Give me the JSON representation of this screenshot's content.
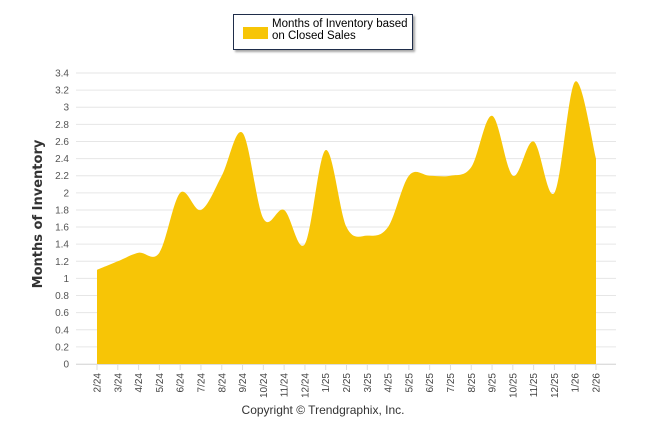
{
  "chart_data": {
    "type": "area",
    "title": "",
    "xlabel": "",
    "ylabel": "Months of Inventory",
    "ylim": [
      0,
      3.4
    ],
    "yticks": [
      "0",
      "0.2",
      "0.4",
      "0.6",
      "0.8",
      "1",
      "1.2",
      "1.4",
      "1.6",
      "1.8",
      "2",
      "2.2",
      "2.4",
      "2.6",
      "2.8",
      "3",
      "3.2",
      "3.4"
    ],
    "ytick_values": [
      0,
      0.2,
      0.4,
      0.6,
      0.8,
      1,
      1.2,
      1.4,
      1.6,
      1.8,
      2,
      2.2,
      2.4,
      2.6,
      2.8,
      3,
      3.2,
      3.4
    ],
    "grid": true,
    "legend_position": "top-center",
    "categories": [
      "2/24",
      "3/24",
      "4/24",
      "5/24",
      "6/24",
      "7/24",
      "8/24",
      "9/24",
      "10/24",
      "11/24",
      "12/24",
      "1/25",
      "2/25",
      "3/25",
      "4/25",
      "5/25",
      "6/25",
      "7/25",
      "8/25",
      "9/25",
      "10/25",
      "11/25",
      "12/25",
      "1/26",
      "2/26"
    ],
    "series": [
      {
        "name": "Months of Inventory based on Closed Sales",
        "color": "#F7C506",
        "values": [
          1.1,
          1.2,
          1.3,
          1.3,
          2.0,
          1.8,
          2.2,
          2.7,
          1.7,
          1.8,
          1.4,
          2.5,
          1.6,
          1.5,
          1.6,
          2.2,
          2.2,
          2.2,
          2.3,
          2.9,
          2.2,
          2.6,
          2.0,
          3.3,
          2.4
        ]
      }
    ]
  },
  "legend": {
    "label_line1": "Months of Inventory based",
    "label_line2": "on Closed Sales"
  },
  "footer": {
    "copyright": "Copyright © Trendgraphix, Inc."
  },
  "colors": {
    "fill": "#F7C506",
    "grid": "#e6e6e6",
    "legend_border": "#1f2d4a"
  }
}
